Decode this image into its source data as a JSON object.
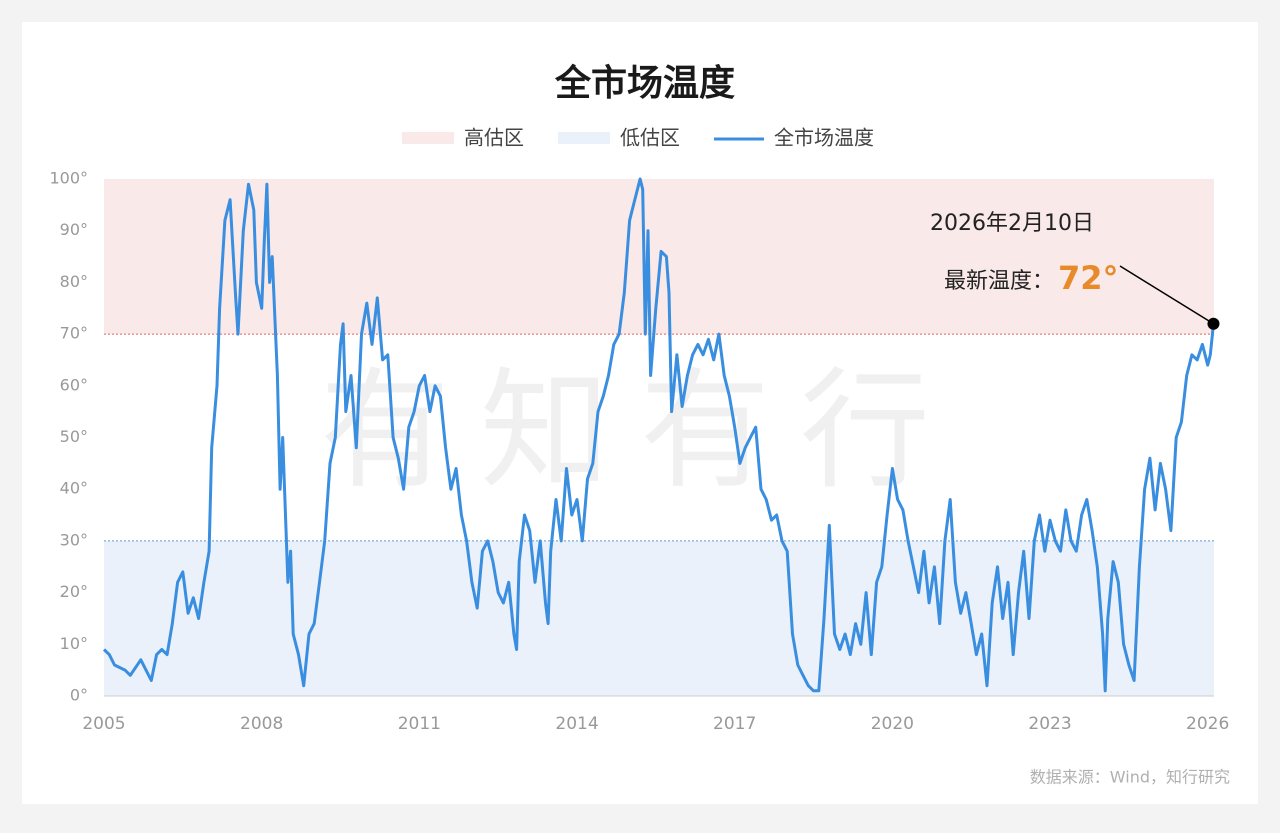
{
  "chart_data": {
    "type": "line",
    "title": "全市场温度",
    "watermark": "有知有行",
    "source": "数据来源：Wind，知行研究",
    "zones": [
      {
        "name": "高估区",
        "range": [
          70,
          100
        ],
        "color": "#f9e9e9",
        "line_color": "#e06060"
      },
      {
        "name": "低估区",
        "range": [
          0,
          30
        ],
        "color": "#eaf1fa",
        "line_color": "#5a9ad8"
      }
    ],
    "annotation": {
      "date": "2026年2月10日",
      "label": "最新温度：",
      "value": 72,
      "value_label": "72°",
      "color": "#e8892a"
    },
    "xlim": [
      2005,
      2026.12
    ],
    "xticks": [
      2005,
      2008,
      2011,
      2014,
      2017,
      2020,
      2023,
      2026
    ],
    "ylim": [
      0,
      100
    ],
    "yticks": [
      {
        "value": 0,
        "label": "0°"
      },
      {
        "value": 10,
        "label": "10°"
      },
      {
        "value": 20,
        "label": "20°"
      },
      {
        "value": 30,
        "label": "30°"
      },
      {
        "value": 40,
        "label": "40°"
      },
      {
        "value": 50,
        "label": "50°"
      },
      {
        "value": 60,
        "label": "60°"
      },
      {
        "value": 70,
        "label": "70°"
      },
      {
        "value": 80,
        "label": "80°"
      },
      {
        "value": 90,
        "label": "90°"
      },
      {
        "value": 100,
        "label": "100°"
      }
    ],
    "x": [
      2005.0,
      2005.1,
      2005.2,
      2005.4,
      2005.5,
      2005.7,
      2005.8,
      2005.9,
      2006.0,
      2006.1,
      2006.2,
      2006.3,
      2006.4,
      2006.5,
      2006.6,
      2006.7,
      2006.8,
      2006.9,
      2007.0,
      2007.05,
      2007.15,
      2007.2,
      2007.3,
      2007.4,
      2007.5,
      2007.55,
      2007.65,
      2007.75,
      2007.85,
      2007.9,
      2008.0,
      2008.05,
      2008.1,
      2008.15,
      2008.2,
      2008.3,
      2008.35,
      2008.4,
      2008.5,
      2008.55,
      2008.6,
      2008.7,
      2008.8,
      2008.9,
      2009.0,
      2009.1,
      2009.2,
      2009.3,
      2009.4,
      2009.5,
      2009.55,
      2009.6,
      2009.7,
      2009.8,
      2009.9,
      2010.0,
      2010.1,
      2010.2,
      2010.3,
      2010.4,
      2010.5,
      2010.6,
      2010.7,
      2010.8,
      2010.9,
      2011.0,
      2011.1,
      2011.2,
      2011.3,
      2011.4,
      2011.5,
      2011.6,
      2011.7,
      2011.8,
      2011.9,
      2012.0,
      2012.1,
      2012.2,
      2012.3,
      2012.4,
      2012.5,
      2012.6,
      2012.7,
      2012.8,
      2012.85,
      2012.9,
      2013.0,
      2013.1,
      2013.2,
      2013.3,
      2013.4,
      2013.45,
      2013.5,
      2013.6,
      2013.7,
      2013.8,
      2013.9,
      2014.0,
      2014.1,
      2014.2,
      2014.3,
      2014.4,
      2014.5,
      2014.6,
      2014.7,
      2014.8,
      2014.9,
      2015.0,
      2015.1,
      2015.2,
      2015.25,
      2015.3,
      2015.35,
      2015.4,
      2015.5,
      2015.6,
      2015.7,
      2015.75,
      2015.8,
      2015.9,
      2016.0,
      2016.1,
      2016.2,
      2016.3,
      2016.4,
      2016.5,
      2016.6,
      2016.7,
      2016.8,
      2016.9,
      2017.0,
      2017.1,
      2017.2,
      2017.3,
      2017.4,
      2017.5,
      2017.6,
      2017.7,
      2017.8,
      2017.9,
      2018.0,
      2018.1,
      2018.2,
      2018.3,
      2018.4,
      2018.5,
      2018.6,
      2018.7,
      2018.8,
      2018.9,
      2019.0,
      2019.1,
      2019.2,
      2019.3,
      2019.4,
      2019.5,
      2019.6,
      2019.7,
      2019.8,
      2019.9,
      2020.0,
      2020.1,
      2020.2,
      2020.3,
      2020.4,
      2020.5,
      2020.6,
      2020.7,
      2020.8,
      2020.9,
      2021.0,
      2021.1,
      2021.2,
      2021.3,
      2021.4,
      2021.5,
      2021.6,
      2021.7,
      2021.8,
      2021.9,
      2022.0,
      2022.1,
      2022.2,
      2022.3,
      2022.4,
      2022.5,
      2022.6,
      2022.7,
      2022.8,
      2022.9,
      2023.0,
      2023.1,
      2023.2,
      2023.3,
      2023.4,
      2023.5,
      2023.6,
      2023.7,
      2023.8,
      2023.9,
      2024.0,
      2024.05,
      2024.1,
      2024.2,
      2024.3,
      2024.4,
      2024.5,
      2024.6,
      2024.7,
      2024.8,
      2024.9,
      2025.0,
      2025.1,
      2025.2,
      2025.3,
      2025.4,
      2025.5,
      2025.6,
      2025.7,
      2025.8,
      2025.9,
      2026.0,
      2026.05,
      2026.11
    ],
    "series": [
      {
        "name": "全市场温度",
        "color": "#3a8ee0",
        "values": [
          9,
          8,
          6,
          5,
          4,
          7,
          5,
          3,
          8,
          9,
          8,
          14,
          22,
          24,
          16,
          19,
          15,
          22,
          28,
          48,
          60,
          75,
          92,
          96,
          78,
          70,
          90,
          99,
          94,
          80,
          75,
          88,
          99,
          80,
          85,
          62,
          40,
          50,
          22,
          28,
          12,
          8,
          2,
          12,
          14,
          22,
          30,
          45,
          50,
          68,
          72,
          55,
          62,
          48,
          70,
          76,
          68,
          77,
          65,
          66,
          50,
          46,
          40,
          52,
          55,
          60,
          62,
          55,
          60,
          58,
          48,
          40,
          44,
          35,
          30,
          22,
          17,
          28,
          30,
          26,
          20,
          18,
          22,
          12,
          9,
          26,
          35,
          32,
          22,
          30,
          18,
          14,
          28,
          38,
          30,
          44,
          35,
          38,
          30,
          42,
          45,
          55,
          58,
          62,
          68,
          70,
          78,
          92,
          96,
          100,
          98,
          70,
          90,
          62,
          75,
          86,
          85,
          78,
          55,
          66,
          56,
          62,
          66,
          68,
          66,
          69,
          65,
          70,
          62,
          58,
          52,
          45,
          48,
          50,
          52,
          40,
          38,
          34,
          35,
          30,
          28,
          12,
          6,
          4,
          2,
          1,
          1,
          15,
          33,
          12,
          9,
          12,
          8,
          14,
          10,
          20,
          8,
          22,
          25,
          35,
          44,
          38,
          36,
          30,
          25,
          20,
          28,
          18,
          25,
          14,
          30,
          38,
          22,
          16,
          20,
          14,
          8,
          12,
          2,
          18,
          25,
          15,
          22,
          8,
          20,
          28,
          15,
          30,
          35,
          28,
          34,
          30,
          28,
          36,
          30,
          28,
          35,
          38,
          32,
          25,
          12,
          1,
          15,
          26,
          22,
          10,
          6,
          3,
          25,
          40,
          46,
          36,
          45,
          40,
          32,
          50,
          53,
          62,
          66,
          65,
          68,
          64,
          66,
          72
        ]
      }
    ]
  }
}
